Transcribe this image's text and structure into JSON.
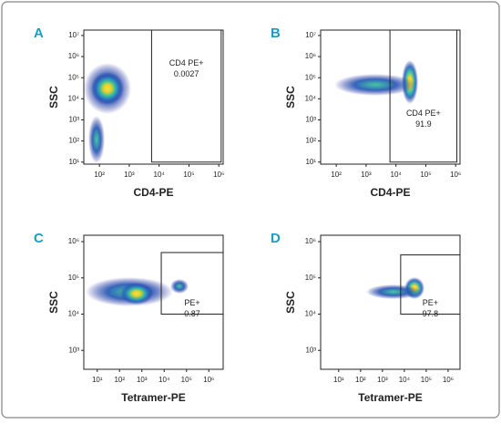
{
  "chart_data": [
    {
      "type": "scatter",
      "panel": "A",
      "xlabel": "CD4-PE",
      "ylabel": "SSC",
      "log_scale": true,
      "xlim": [
        30,
        1400000
      ],
      "ylim": [
        8,
        18000000
      ],
      "xticks": [
        {
          "value": 100,
          "label": "10²"
        },
        {
          "value": 1000,
          "label": "10³"
        },
        {
          "value": 10000,
          "label": "10⁴"
        },
        {
          "value": 100000,
          "label": "10⁵"
        },
        {
          "value": 1000000,
          "label": "10⁶"
        }
      ],
      "yticks": [
        {
          "value": 10,
          "label": "10¹"
        },
        {
          "value": 100,
          "label": "10²"
        },
        {
          "value": 1000,
          "label": "10³"
        },
        {
          "value": 10000,
          "label": "10⁴"
        },
        {
          "value": 100000,
          "label": "10⁵"
        },
        {
          "value": 1000000,
          "label": "10⁶"
        },
        {
          "value": 10000000,
          "label": "10⁷"
        }
      ],
      "gate": {
        "name": "CD4 PE+",
        "value": 0.0027,
        "x": [
          5600,
          1200000
        ],
        "y": [
          10,
          18000000
        ]
      }
    },
    {
      "type": "scatter",
      "panel": "B",
      "xlabel": "CD4-PE",
      "ylabel": "SSC",
      "log_scale": true,
      "xlim": [
        30,
        1400000
      ],
      "ylim": [
        8,
        18000000
      ],
      "xticks": [
        {
          "value": 100,
          "label": "10²"
        },
        {
          "value": 1000,
          "label": "10³"
        },
        {
          "value": 10000,
          "label": "10⁴"
        },
        {
          "value": 100000,
          "label": "10⁵"
        },
        {
          "value": 1000000,
          "label": "10⁶"
        }
      ],
      "yticks": [
        {
          "value": 10,
          "label": "10¹"
        },
        {
          "value": 100,
          "label": "10²"
        },
        {
          "value": 1000,
          "label": "10³"
        },
        {
          "value": 10000,
          "label": "10⁴"
        },
        {
          "value": 100000,
          "label": "10⁵"
        },
        {
          "value": 1000000,
          "label": "10⁶"
        },
        {
          "value": 10000000,
          "label": "10⁷"
        }
      ],
      "gate": {
        "name": "CD4 PE+",
        "value": 91.9,
        "x": [
          6300,
          1100000
        ],
        "y": [
          10,
          18000000
        ]
      }
    },
    {
      "type": "scatter",
      "panel": "C",
      "xlabel": "Tetramer-PE",
      "ylabel": "SSC",
      "log_scale": true,
      "xlim": [
        2.5,
        4400000
      ],
      "ylim": [
        300,
        1500000
      ],
      "xticks": [
        {
          "value": 10,
          "label": "10¹"
        },
        {
          "value": 100,
          "label": "10²"
        },
        {
          "value": 1000,
          "label": "10³"
        },
        {
          "value": 10000,
          "label": "10⁴"
        },
        {
          "value": 100000,
          "label": "10⁵"
        },
        {
          "value": 1000000,
          "label": "10⁶"
        }
      ],
      "yticks": [
        {
          "value": 1000,
          "label": "10³"
        },
        {
          "value": 10000,
          "label": "10⁴"
        },
        {
          "value": 100000,
          "label": "10⁵"
        },
        {
          "value": 1000000,
          "label": "10⁶"
        }
      ],
      "gate": {
        "name": "PE+",
        "value": 0.87,
        "x": [
          7400,
          4400000
        ],
        "y": [
          10000,
          500000
        ]
      }
    },
    {
      "type": "scatter",
      "panel": "D",
      "xlabel": "Tetramer-PE",
      "ylabel": "SSC",
      "log_scale": true,
      "xlim": [
        1.5,
        3500000
      ],
      "ylim": [
        300,
        1500000
      ],
      "xticks": [
        {
          "value": 10,
          "label": "10¹"
        },
        {
          "value": 100,
          "label": "10²"
        },
        {
          "value": 1000,
          "label": "10³"
        },
        {
          "value": 10000,
          "label": "10⁴"
        },
        {
          "value": 100000,
          "label": "10⁵"
        },
        {
          "value": 1000000,
          "label": "10⁶"
        }
      ],
      "yticks": [
        {
          "value": 1000,
          "label": "10³"
        },
        {
          "value": 10000,
          "label": "10⁴"
        },
        {
          "value": 100000,
          "label": "10⁵"
        },
        {
          "value": 1000000,
          "label": "10⁶"
        }
      ],
      "gate": {
        "name": "PE+",
        "value": 97.8,
        "x": [
          6800,
          3500000
        ],
        "y": [
          10000,
          430000
        ]
      }
    }
  ]
}
